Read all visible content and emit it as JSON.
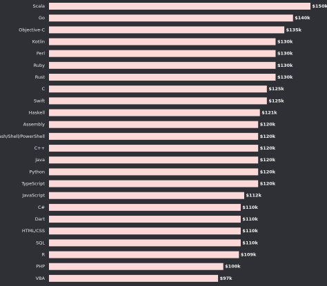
{
  "chart_data": {
    "type": "bar",
    "orientation": "horizontal",
    "color": "#fcd9d9",
    "categories": [
      "Scala",
      "Go",
      "Objective-C",
      "Kotlin",
      "Perl",
      "Ruby",
      "Rust",
      "C",
      "Swift",
      "Haskell",
      "Assembly",
      "Bash/Shell/PowerShell",
      "C++",
      "Java",
      "Python",
      "TypeScript",
      "JavaScript",
      "C#",
      "Dart",
      "HTML/CSS",
      "SQL",
      "R",
      "PHP",
      "VBA"
    ],
    "values": [
      150,
      140,
      135,
      130,
      130,
      130,
      130,
      125,
      125,
      121,
      120,
      120,
      120,
      120,
      120,
      120,
      112,
      110,
      110,
      110,
      110,
      109,
      100,
      97
    ],
    "value_labels": [
      "$150k",
      "$140k",
      "$135k",
      "$130k",
      "$130k",
      "$130k",
      "$130k",
      "$125k",
      "$125k",
      "$121k",
      "$120k",
      "$120k",
      "$120k",
      "$120k",
      "$120k",
      "$120k",
      "$112k",
      "$110k",
      "$110k",
      "$110k",
      "$110k",
      "$109k",
      "$100k",
      "$97k"
    ]
  }
}
